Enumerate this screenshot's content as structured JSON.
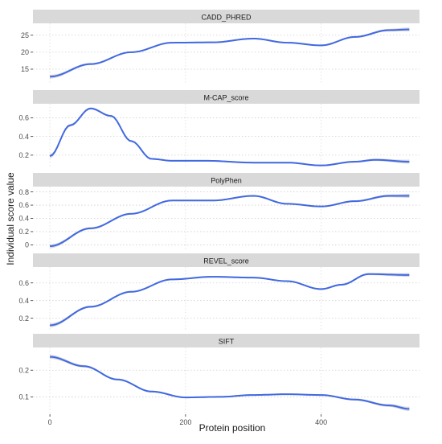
{
  "chart_data": {
    "type": "line",
    "xlabel": "Protein position",
    "ylabel": "Individual score value",
    "xlim": [
      -25,
      545
    ],
    "x_ticks": [
      0,
      200,
      400
    ],
    "grid": "dotted major gridlines",
    "colors": {
      "line": "#4169E1",
      "band": "#c8c8d0",
      "strip": "#d9d9d9"
    },
    "panels": [
      {
        "name": "CADD_PHRED",
        "ylim": [
          10.5,
          28.5
        ],
        "y_ticks": [
          15,
          20,
          25
        ],
        "points": [
          [
            0,
            12.8
          ],
          [
            60,
            16.5
          ],
          [
            120,
            20.0
          ],
          [
            180,
            22.8
          ],
          [
            240,
            22.9
          ],
          [
            300,
            24.0
          ],
          [
            350,
            22.8
          ],
          [
            400,
            22.0
          ],
          [
            450,
            24.5
          ],
          [
            500,
            26.5
          ],
          [
            530,
            26.7
          ]
        ]
      },
      {
        "name": "M-CAP_score",
        "ylim": [
          0.07,
          0.75
        ],
        "y_ticks": [
          0.2,
          0.4,
          0.6
        ],
        "points": [
          [
            0,
            0.19
          ],
          [
            30,
            0.52
          ],
          [
            60,
            0.7
          ],
          [
            90,
            0.62
          ],
          [
            120,
            0.35
          ],
          [
            150,
            0.16
          ],
          [
            180,
            0.14
          ],
          [
            230,
            0.14
          ],
          [
            300,
            0.12
          ],
          [
            350,
            0.12
          ],
          [
            400,
            0.09
          ],
          [
            450,
            0.13
          ],
          [
            480,
            0.15
          ],
          [
            530,
            0.13
          ]
        ]
      },
      {
        "name": "PolyPhen",
        "ylim": [
          -0.08,
          0.88
        ],
        "y_ticks": [
          0.0,
          0.2,
          0.4,
          0.6,
          0.8
        ],
        "points": [
          [
            0,
            -0.02
          ],
          [
            60,
            0.25
          ],
          [
            120,
            0.47
          ],
          [
            180,
            0.67
          ],
          [
            240,
            0.67
          ],
          [
            300,
            0.74
          ],
          [
            350,
            0.62
          ],
          [
            400,
            0.58
          ],
          [
            450,
            0.66
          ],
          [
            500,
            0.74
          ],
          [
            530,
            0.74
          ]
        ]
      },
      {
        "name": "REVEL_score",
        "ylim": [
          0.06,
          0.78
        ],
        "y_ticks": [
          0.2,
          0.4,
          0.6
        ],
        "points": [
          [
            0,
            0.12
          ],
          [
            60,
            0.33
          ],
          [
            120,
            0.5
          ],
          [
            180,
            0.64
          ],
          [
            240,
            0.67
          ],
          [
            300,
            0.66
          ],
          [
            350,
            0.62
          ],
          [
            400,
            0.53
          ],
          [
            430,
            0.58
          ],
          [
            470,
            0.7
          ],
          [
            530,
            0.69
          ]
        ]
      },
      {
        "name": "SIFT",
        "ylim": [
          0.035,
          0.285
        ],
        "y_ticks": [
          0.1,
          0.2
        ],
        "points": [
          [
            0,
            0.25
          ],
          [
            50,
            0.215
          ],
          [
            100,
            0.165
          ],
          [
            150,
            0.12
          ],
          [
            200,
            0.098
          ],
          [
            250,
            0.1
          ],
          [
            300,
            0.107
          ],
          [
            350,
            0.11
          ],
          [
            400,
            0.107
          ],
          [
            450,
            0.09
          ],
          [
            500,
            0.068
          ],
          [
            530,
            0.055
          ]
        ]
      }
    ]
  }
}
